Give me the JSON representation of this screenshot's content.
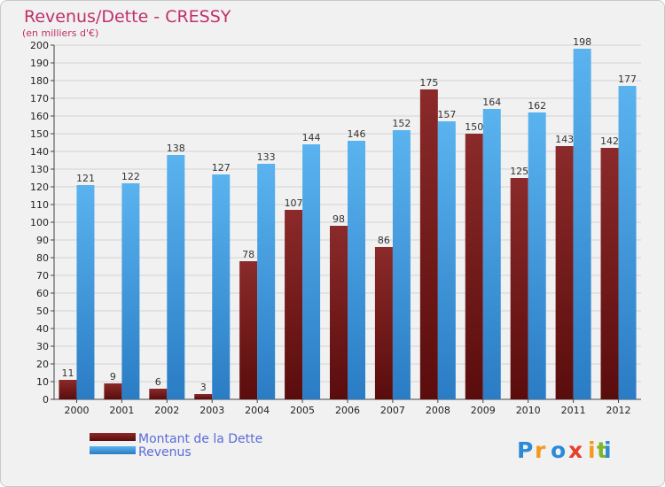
{
  "chart_data": {
    "type": "bar",
    "title": "Revenus/Dette - CRESSY",
    "subtitle": "(en milliers d'€)",
    "categories": [
      "2000",
      "2001",
      "2002",
      "2003",
      "2004",
      "2005",
      "2006",
      "2007",
      "2008",
      "2009",
      "2010",
      "2011",
      "2012"
    ],
    "series": [
      {
        "name": "Montant de la Dette",
        "color": "#7a1c1c",
        "values": [
          11,
          9,
          6,
          3,
          78,
          107,
          98,
          86,
          175,
          150,
          125,
          143,
          142
        ]
      },
      {
        "name": "Revenus",
        "color": "#3d9be0",
        "values": [
          121,
          122,
          138,
          127,
          133,
          144,
          146,
          152,
          157,
          164,
          162,
          198,
          177
        ]
      }
    ],
    "ylim": [
      0,
      200
    ],
    "ytick_step": 10,
    "grid": true,
    "legend": "bottom-left"
  },
  "brand": {
    "letters": [
      "P",
      "r",
      "o",
      "x",
      "i",
      "t",
      "i"
    ],
    "colors": [
      "#2d8ad6",
      "#f39a1e",
      "#2d8ad6",
      "#e4402a",
      "#f39a1e",
      "#7fb52a",
      "#2d8ad6"
    ]
  }
}
